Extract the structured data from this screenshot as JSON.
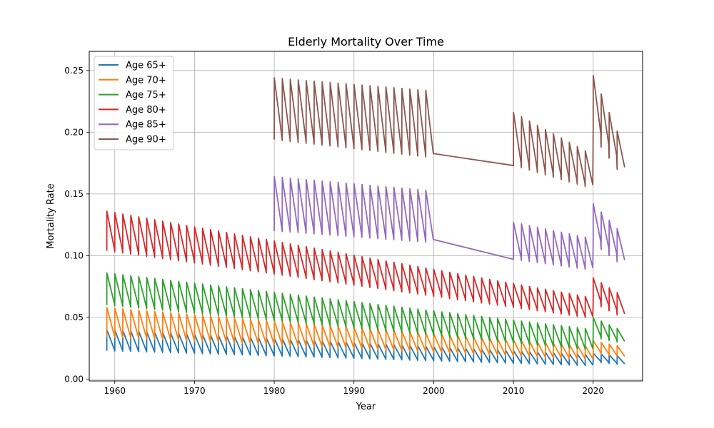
{
  "chart_data": {
    "type": "line",
    "title": "Elderly Mortality Over Time",
    "xlabel": "Year",
    "ylabel": "Mortality Rate",
    "xlim": [
      1956.8,
      2026.2
    ],
    "ylim": [
      -0.0015,
      0.2655
    ],
    "x_ticks": [
      1960,
      1970,
      1980,
      1990,
      2000,
      2010,
      2020
    ],
    "y_ticks": [
      0.0,
      0.05,
      0.1,
      0.15,
      0.2,
      0.25
    ],
    "grid": true,
    "legend_position": "upper-left",
    "series": [
      {
        "name": "Age 65+",
        "color": "#1f77b4",
        "segments": [
          {
            "start": 1959,
            "end": 2019,
            "peak_start": 0.04,
            "peak_end": 0.02,
            "trough_start": 0.023,
            "trough_end": 0.011
          },
          {
            "start": 2020,
            "end": 2023,
            "peak_start": 0.021,
            "peak_end": 0.019,
            "trough_start": 0.014,
            "trough_end": 0.012
          }
        ]
      },
      {
        "name": "Age 70+",
        "color": "#ff7f0e",
        "segments": [
          {
            "start": 1959,
            "end": 2019,
            "peak_start": 0.058,
            "peak_end": 0.027,
            "trough_start": 0.034,
            "trough_end": 0.016
          },
          {
            "start": 2020,
            "end": 2023,
            "peak_start": 0.031,
            "peak_end": 0.027,
            "trough_start": 0.021,
            "trough_end": 0.018
          }
        ]
      },
      {
        "name": "Age 75+",
        "color": "#2ca02c",
        "segments": [
          {
            "start": 1959,
            "end": 2019,
            "peak_start": 0.086,
            "peak_end": 0.041,
            "trough_start": 0.06,
            "trough_end": 0.024
          },
          {
            "start": 2020,
            "end": 2023,
            "peak_start": 0.05,
            "peak_end": 0.041,
            "trough_start": 0.034,
            "trough_end": 0.03
          }
        ]
      },
      {
        "name": "Age 80+",
        "color": "#d62728",
        "segments": [
          {
            "start": 1959,
            "end": 2019,
            "peak_start": 0.136,
            "peak_end": 0.067,
            "trough_start": 0.104,
            "trough_end": 0.05
          },
          {
            "start": 2020,
            "end": 2023,
            "peak_start": 0.082,
            "peak_end": 0.07,
            "trough_start": 0.062,
            "trough_end": 0.052
          }
        ]
      },
      {
        "name": "Age 85+",
        "color": "#9467bd",
        "segments": [
          {
            "start": 1980,
            "end": 1999,
            "peak_start": 0.164,
            "peak_end": 0.153,
            "trough_start": 0.12,
            "trough_end": 0.111
          },
          {
            "start": 2010,
            "end": 2019,
            "peak_start": 0.127,
            "peak_end": 0.115,
            "trough_start": 0.097,
            "trough_end": 0.089
          },
          {
            "start": 2020,
            "end": 2023,
            "peak_start": 0.142,
            "peak_end": 0.122,
            "trough_start": 0.11,
            "trough_end": 0.095
          }
        ]
      },
      {
        "name": "Age 90+",
        "color": "#8c564b",
        "segments": [
          {
            "start": 1980,
            "end": 1999,
            "peak_start": 0.244,
            "peak_end": 0.234,
            "trough_start": 0.194,
            "trough_end": 0.18
          },
          {
            "start": 2010,
            "end": 2019,
            "peak_start": 0.216,
            "peak_end": 0.185,
            "trough_start": 0.173,
            "trough_end": 0.156
          },
          {
            "start": 2020,
            "end": 2023,
            "peak_start": 0.246,
            "peak_end": 0.201,
            "trough_start": 0.197,
            "trough_end": 0.17
          }
        ]
      }
    ]
  }
}
